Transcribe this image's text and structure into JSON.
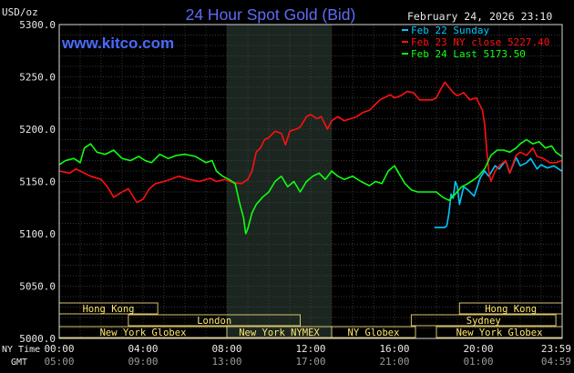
{
  "chart_data": {
    "type": "line",
    "title": "24 Hour Spot Gold (Bid)",
    "unit_label": "USD/oz",
    "watermark": "www.kitco.com",
    "timestamp": "February 24, 2026 23:10",
    "ylim": [
      5000,
      5300
    ],
    "yticks": [
      "5300.0",
      "5250.0",
      "5200.0",
      "5150.0",
      "5100.0",
      "5050.0",
      "5000.0"
    ],
    "ytick_values": [
      5300,
      5250,
      5200,
      5150,
      5100,
      5050,
      5000
    ],
    "xlim": [
      0,
      24
    ],
    "row_labels": {
      "ny": "NY Time",
      "gmt": "GMT"
    },
    "x_ticks_ny": [
      "00:00",
      "04:00",
      "08:00",
      "12:00",
      "16:00",
      "20:00",
      "23:59"
    ],
    "x_ticks_gmt": [
      "05:00",
      "09:00",
      "13:00",
      "17:00",
      "21:00",
      "01:00",
      "04:59"
    ],
    "x_tick_hours": [
      0,
      4,
      8,
      12,
      16,
      20,
      24
    ],
    "grid": true,
    "legend_position": "top-right",
    "shade": {
      "from": 8.0,
      "to": 13.0
    },
    "sessions": [
      {
        "label": "Hong Kong",
        "start": 0,
        "end": 4.7,
        "row": 0
      },
      {
        "label": "London",
        "start": 3.3,
        "end": 11.5,
        "row": 1
      },
      {
        "label": "New York Globex",
        "start": 0,
        "end": 8.0,
        "row": 2
      },
      {
        "label": "New York NYMEX",
        "start": 8.0,
        "end": 13.0,
        "row": 2
      },
      {
        "label": "NY Globex",
        "start": 13.0,
        "end": 17.0,
        "row": 2
      },
      {
        "label": "Hong Kong",
        "start": 19.1,
        "end": 24,
        "row": 0
      },
      {
        "label": "Sydney",
        "start": 16.8,
        "end": 23.7,
        "row": 1
      },
      {
        "label": "New York Globex",
        "start": 18.0,
        "end": 24,
        "row": 2
      }
    ],
    "series": [
      {
        "name": "Feb 22 Sunday",
        "color": "#00c8ff",
        "points": [
          [
            17.9,
            5106
          ],
          [
            18.4,
            5106
          ],
          [
            18.5,
            5108
          ],
          [
            18.6,
            5120
          ],
          [
            18.7,
            5138
          ],
          [
            18.8,
            5134
          ],
          [
            18.9,
            5150
          ],
          [
            19.0,
            5145
          ],
          [
            19.1,
            5128
          ],
          [
            19.3,
            5145
          ],
          [
            19.5,
            5142
          ],
          [
            19.8,
            5136
          ],
          [
            20.0,
            5148
          ],
          [
            20.1,
            5154
          ],
          [
            20.3,
            5160
          ],
          [
            20.5,
            5155
          ],
          [
            20.8,
            5165
          ],
          [
            21.0,
            5162
          ],
          [
            21.3,
            5170
          ],
          [
            21.5,
            5158
          ],
          [
            21.8,
            5173
          ],
          [
            22.0,
            5165
          ],
          [
            22.3,
            5168
          ],
          [
            22.5,
            5172
          ],
          [
            22.8,
            5162
          ],
          [
            23.0,
            5166
          ],
          [
            23.3,
            5163
          ],
          [
            23.6,
            5165
          ],
          [
            23.98,
            5160
          ]
        ]
      },
      {
        "name": "Feb 23 NY close 5227.40",
        "color": "#ff1010",
        "points": [
          [
            0,
            5160
          ],
          [
            0.5,
            5158
          ],
          [
            0.8,
            5162
          ],
          [
            1.2,
            5158
          ],
          [
            1.5,
            5155
          ],
          [
            2.0,
            5152
          ],
          [
            2.3,
            5145
          ],
          [
            2.6,
            5135
          ],
          [
            3.0,
            5140
          ],
          [
            3.3,
            5143
          ],
          [
            3.7,
            5130
          ],
          [
            4.0,
            5133
          ],
          [
            4.3,
            5143
          ],
          [
            4.6,
            5148
          ],
          [
            5.0,
            5150
          ],
          [
            5.3,
            5152
          ],
          [
            5.7,
            5155
          ],
          [
            6.2,
            5152
          ],
          [
            6.7,
            5150
          ],
          [
            7.2,
            5153
          ],
          [
            7.5,
            5150
          ],
          [
            7.9,
            5152
          ],
          [
            8.3,
            5149
          ],
          [
            8.7,
            5148
          ],
          [
            9.0,
            5152
          ],
          [
            9.2,
            5160
          ],
          [
            9.4,
            5178
          ],
          [
            9.6,
            5182
          ],
          [
            9.8,
            5190
          ],
          [
            10.0,
            5192
          ],
          [
            10.3,
            5198
          ],
          [
            10.6,
            5196
          ],
          [
            10.8,
            5185
          ],
          [
            11.0,
            5198
          ],
          [
            11.3,
            5200
          ],
          [
            11.5,
            5202
          ],
          [
            11.8,
            5212
          ],
          [
            12.0,
            5214
          ],
          [
            12.3,
            5210
          ],
          [
            12.5,
            5212
          ],
          [
            12.8,
            5200
          ],
          [
            13.0,
            5208
          ],
          [
            13.3,
            5212
          ],
          [
            13.6,
            5208
          ],
          [
            13.9,
            5210
          ],
          [
            14.2,
            5212
          ],
          [
            14.5,
            5216
          ],
          [
            14.8,
            5218
          ],
          [
            15.0,
            5222
          ],
          [
            15.3,
            5228
          ],
          [
            15.5,
            5230
          ],
          [
            15.8,
            5233
          ],
          [
            16.0,
            5230
          ],
          [
            16.3,
            5232
          ],
          [
            16.6,
            5236
          ],
          [
            16.9,
            5235
          ],
          [
            17.2,
            5228
          ],
          [
            17.5,
            5228
          ],
          [
            17.8,
            5228
          ],
          [
            18.0,
            5230
          ],
          [
            18.2,
            5238
          ],
          [
            18.4,
            5245
          ],
          [
            18.6,
            5240
          ],
          [
            18.8,
            5235
          ],
          [
            19.0,
            5232
          ],
          [
            19.3,
            5235
          ],
          [
            19.6,
            5228
          ],
          [
            19.9,
            5230
          ],
          [
            20.2,
            5218
          ],
          [
            20.3,
            5205
          ],
          [
            20.4,
            5180
          ],
          [
            20.5,
            5160
          ],
          [
            20.6,
            5150
          ],
          [
            20.8,
            5160
          ],
          [
            21.0,
            5165
          ],
          [
            21.3,
            5170
          ],
          [
            21.5,
            5158
          ],
          [
            21.8,
            5175
          ],
          [
            22.0,
            5178
          ],
          [
            22.3,
            5175
          ],
          [
            22.6,
            5182
          ],
          [
            22.8,
            5174
          ],
          [
            23.1,
            5172
          ],
          [
            23.4,
            5168
          ],
          [
            23.7,
            5168
          ],
          [
            23.98,
            5170
          ]
        ]
      },
      {
        "name": "Feb 24 Last 5173.50",
        "color": "#10ff10",
        "points": [
          [
            0,
            5166
          ],
          [
            0.3,
            5170
          ],
          [
            0.7,
            5172
          ],
          [
            1.0,
            5168
          ],
          [
            1.2,
            5182
          ],
          [
            1.5,
            5186
          ],
          [
            1.8,
            5178
          ],
          [
            2.2,
            5176
          ],
          [
            2.6,
            5180
          ],
          [
            3.0,
            5172
          ],
          [
            3.4,
            5170
          ],
          [
            3.8,
            5174
          ],
          [
            4.1,
            5170
          ],
          [
            4.4,
            5168
          ],
          [
            4.8,
            5176
          ],
          [
            5.2,
            5172
          ],
          [
            5.6,
            5175
          ],
          [
            6.0,
            5176
          ],
          [
            6.5,
            5174
          ],
          [
            7.0,
            5168
          ],
          [
            7.3,
            5170
          ],
          [
            7.5,
            5160
          ],
          [
            7.8,
            5155
          ],
          [
            8.1,
            5152
          ],
          [
            8.4,
            5148
          ],
          [
            8.6,
            5130
          ],
          [
            8.8,
            5115
          ],
          [
            8.9,
            5100
          ],
          [
            9.0,
            5105
          ],
          [
            9.2,
            5120
          ],
          [
            9.4,
            5128
          ],
          [
            9.7,
            5135
          ],
          [
            10.0,
            5140
          ],
          [
            10.3,
            5150
          ],
          [
            10.6,
            5155
          ],
          [
            10.9,
            5145
          ],
          [
            11.2,
            5150
          ],
          [
            11.5,
            5140
          ],
          [
            11.8,
            5150
          ],
          [
            12.1,
            5155
          ],
          [
            12.4,
            5158
          ],
          [
            12.7,
            5152
          ],
          [
            13.0,
            5160
          ],
          [
            13.3,
            5155
          ],
          [
            13.6,
            5152
          ],
          [
            14.0,
            5155
          ],
          [
            14.4,
            5150
          ],
          [
            14.8,
            5146
          ],
          [
            15.1,
            5150
          ],
          [
            15.4,
            5148
          ],
          [
            15.7,
            5160
          ],
          [
            16.0,
            5165
          ],
          [
            16.2,
            5158
          ],
          [
            16.5,
            5148
          ],
          [
            16.8,
            5142
          ],
          [
            17.1,
            5140
          ],
          [
            17.4,
            5140
          ],
          [
            17.7,
            5140
          ],
          [
            18.0,
            5140
          ],
          [
            18.3,
            5135
          ],
          [
            18.6,
            5132
          ],
          [
            18.9,
            5138
          ],
          [
            19.2,
            5145
          ],
          [
            19.5,
            5148
          ],
          [
            19.8,
            5152
          ],
          [
            20.0,
            5155
          ],
          [
            20.3,
            5162
          ],
          [
            20.6,
            5175
          ],
          [
            20.9,
            5180
          ],
          [
            21.2,
            5180
          ],
          [
            21.5,
            5178
          ],
          [
            21.8,
            5182
          ],
          [
            22.0,
            5186
          ],
          [
            22.3,
            5190
          ],
          [
            22.6,
            5186
          ],
          [
            22.9,
            5188
          ],
          [
            23.2,
            5182
          ],
          [
            23.5,
            5184
          ],
          [
            23.7,
            5178
          ],
          [
            23.98,
            5174
          ]
        ]
      }
    ]
  }
}
